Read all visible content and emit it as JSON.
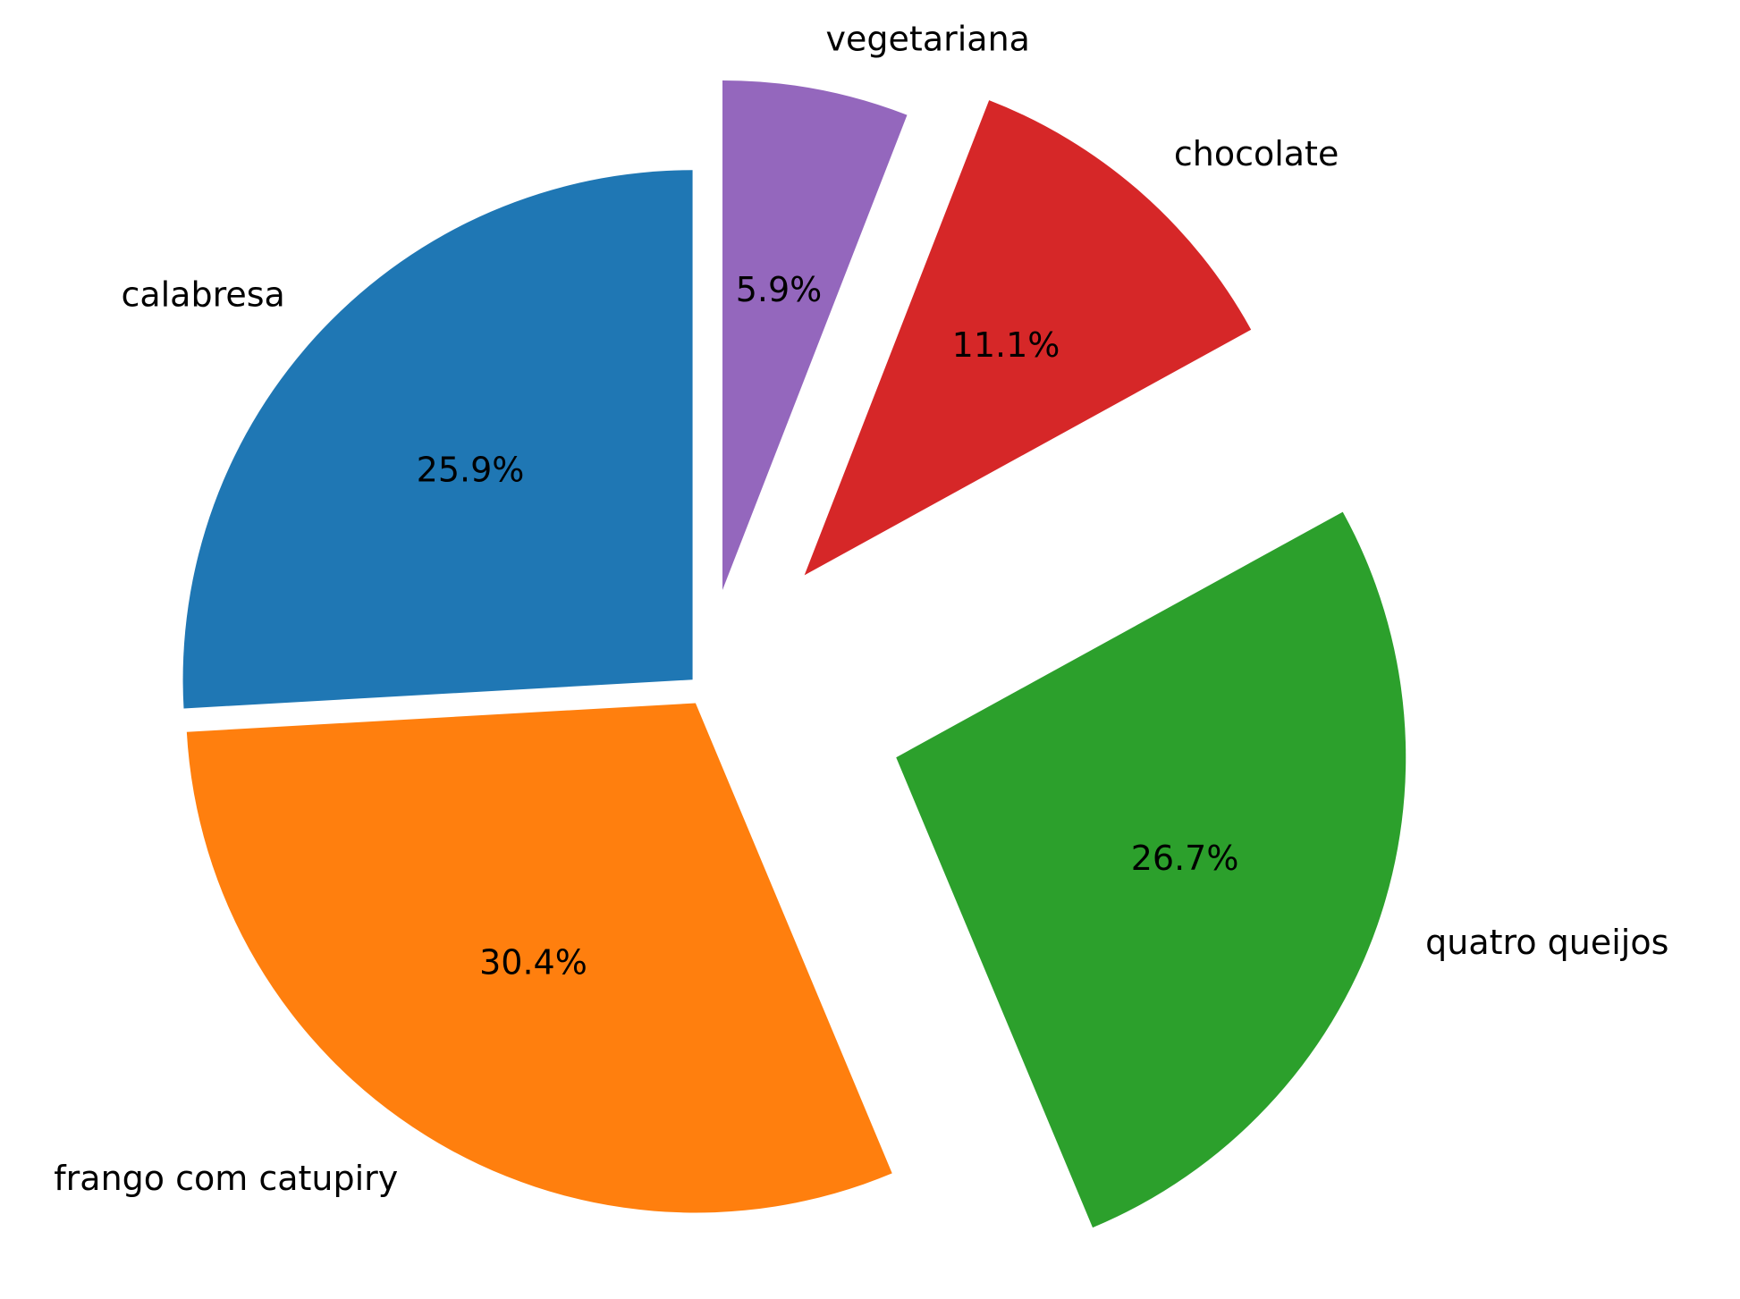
{
  "chart_data": {
    "type": "pie",
    "title": "",
    "start_angle_deg": 90,
    "direction": "counterclockwise",
    "slices": [
      {
        "label": "calabresa",
        "value": 25.9,
        "pct_label": "25.9%",
        "color": "#1f77b4",
        "explode": 0.03
      },
      {
        "label": "frango com catupiry",
        "value": 30.4,
        "pct_label": "30.4%",
        "color": "#ff7f0e",
        "explode": 0.03
      },
      {
        "label": "quatro queijos",
        "value": 26.7,
        "pct_label": "26.7%",
        "color": "#2ca02c",
        "explode": 0.4
      },
      {
        "label": "chocolate",
        "value": 11.1,
        "pct_label": "11.1%",
        "color": "#d62728",
        "explode": 0.3
      },
      {
        "label": "vegetariana",
        "value": 5.9,
        "pct_label": "5.9%",
        "color": "#9467bd",
        "explode": 0.2
      }
    ]
  }
}
